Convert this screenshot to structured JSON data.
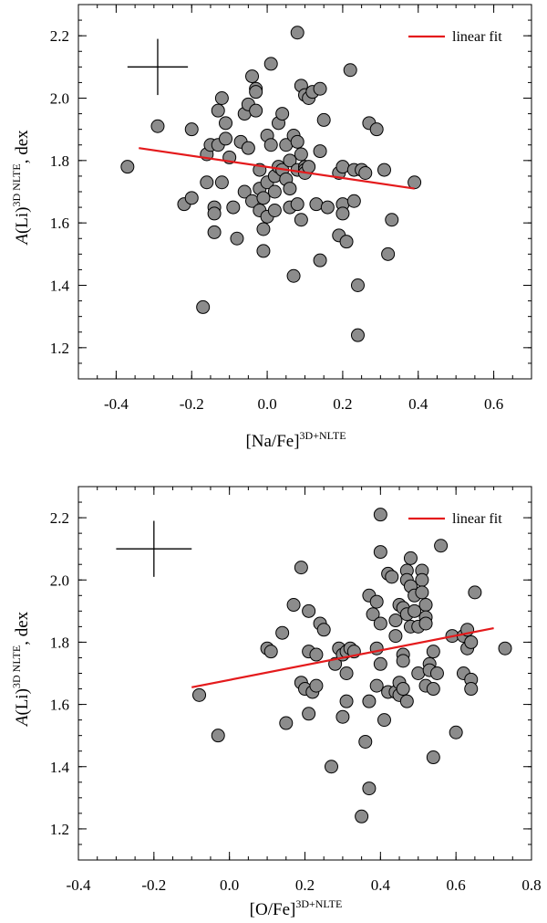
{
  "chart_data": [
    {
      "type": "scatter",
      "xlabel": "[Na/Fe]",
      "xlabel_sup": "3D+NLTE",
      "ylabel_main": "A(Li)",
      "ylabel_sup": "3D NLTE",
      "ylabel_unit": ", dex",
      "xlim": [
        -0.5,
        0.7
      ],
      "ylim": [
        1.1,
        2.3
      ],
      "xticks": [
        "-0.4",
        "-0.2",
        "0.0",
        "0.2",
        "0.4",
        "0.6"
      ],
      "xtick_values": [
        -0.4,
        -0.2,
        0.0,
        0.2,
        0.4,
        0.6
      ],
      "yticks": [
        "1.2",
        "1.4",
        "1.6",
        "1.8",
        "2.0",
        "2.2"
      ],
      "ytick_values": [
        1.2,
        1.4,
        1.6,
        1.8,
        2.0,
        2.2
      ],
      "legend": "linear fit",
      "fit": {
        "x": [
          -0.34,
          0.39
        ],
        "y": [
          1.84,
          1.71
        ]
      },
      "error_bar": {
        "x": -0.29,
        "y": 2.1,
        "dx": 0.08,
        "dy": 0.09
      },
      "points": [
        [
          -0.37,
          1.78
        ],
        [
          -0.29,
          1.91
        ],
        [
          -0.22,
          1.66
        ],
        [
          -0.2,
          1.68
        ],
        [
          -0.2,
          1.9
        ],
        [
          -0.17,
          1.33
        ],
        [
          -0.16,
          1.73
        ],
        [
          -0.16,
          1.82
        ],
        [
          -0.15,
          1.85
        ],
        [
          -0.14,
          1.57
        ],
        [
          -0.14,
          1.65
        ],
        [
          -0.14,
          1.63
        ],
        [
          -0.13,
          1.96
        ],
        [
          -0.13,
          1.85
        ],
        [
          -0.12,
          2.0
        ],
        [
          -0.12,
          1.73
        ],
        [
          -0.11,
          1.87
        ],
        [
          -0.11,
          1.92
        ],
        [
          -0.1,
          1.81
        ],
        [
          -0.09,
          1.65
        ],
        [
          -0.08,
          1.55
        ],
        [
          -0.07,
          1.86
        ],
        [
          -0.06,
          1.7
        ],
        [
          -0.06,
          1.95
        ],
        [
          -0.05,
          1.98
        ],
        [
          -0.05,
          1.84
        ],
        [
          -0.04,
          2.07
        ],
        [
          -0.04,
          1.67
        ],
        [
          -0.03,
          2.03
        ],
        [
          -0.03,
          2.02
        ],
        [
          -0.03,
          1.96
        ],
        [
          -0.02,
          1.77
        ],
        [
          -0.02,
          1.71
        ],
        [
          -0.02,
          1.64
        ],
        [
          -0.01,
          1.68
        ],
        [
          -0.01,
          1.58
        ],
        [
          0.0,
          1.73
        ],
        [
          0.0,
          1.62
        ],
        [
          -0.01,
          1.51
        ],
        [
          0.0,
          1.88
        ],
        [
          0.01,
          1.85
        ],
        [
          0.01,
          2.11
        ],
        [
          0.02,
          1.75
        ],
        [
          0.02,
          1.64
        ],
        [
          0.02,
          1.7
        ],
        [
          0.03,
          1.92
        ],
        [
          0.03,
          1.78
        ],
        [
          0.04,
          1.77
        ],
        [
          0.04,
          1.95
        ],
        [
          0.05,
          1.85
        ],
        [
          0.05,
          1.74
        ],
        [
          0.06,
          1.71
        ],
        [
          0.06,
          1.8
        ],
        [
          0.06,
          1.65
        ],
        [
          0.07,
          1.43
        ],
        [
          0.07,
          1.88
        ],
        [
          0.08,
          2.21
        ],
        [
          0.08,
          1.86
        ],
        [
          0.08,
          1.77
        ],
        [
          0.08,
          1.66
        ],
        [
          0.09,
          2.04
        ],
        [
          0.09,
          1.82
        ],
        [
          0.09,
          1.61
        ],
        [
          0.1,
          2.01
        ],
        [
          0.1,
          1.78
        ],
        [
          0.1,
          1.77
        ],
        [
          0.1,
          1.76
        ],
        [
          0.11,
          2.0
        ],
        [
          0.11,
          1.78
        ],
        [
          0.12,
          2.02
        ],
        [
          0.13,
          1.66
        ],
        [
          0.14,
          1.48
        ],
        [
          0.14,
          1.83
        ],
        [
          0.14,
          2.03
        ],
        [
          0.15,
          1.93
        ],
        [
          0.16,
          1.65
        ],
        [
          0.19,
          1.56
        ],
        [
          0.19,
          1.76
        ],
        [
          0.2,
          1.78
        ],
        [
          0.2,
          1.66
        ],
        [
          0.2,
          1.63
        ],
        [
          0.21,
          1.54
        ],
        [
          0.22,
          2.09
        ],
        [
          0.23,
          1.67
        ],
        [
          0.23,
          1.77
        ],
        [
          0.24,
          1.4
        ],
        [
          0.24,
          1.24
        ],
        [
          0.25,
          1.77
        ],
        [
          0.26,
          1.76
        ],
        [
          0.27,
          1.92
        ],
        [
          0.29,
          1.9
        ],
        [
          0.31,
          1.77
        ],
        [
          0.32,
          1.5
        ],
        [
          0.33,
          1.61
        ],
        [
          0.39,
          1.73
        ]
      ]
    },
    {
      "type": "scatter",
      "xlabel": "[O/Fe]",
      "xlabel_sup": "3D+NLTE",
      "ylabel_main": "A(Li)",
      "ylabel_sup": "3D NLTE",
      "ylabel_unit": ", dex",
      "xlim": [
        -0.4,
        0.8
      ],
      "ylim": [
        1.1,
        2.3
      ],
      "xticks": [
        "-0.4",
        "-0.2",
        "0.0",
        "0.2",
        "0.4",
        "0.6",
        "0.8"
      ],
      "xtick_values": [
        -0.4,
        -0.2,
        0.0,
        0.2,
        0.4,
        0.6,
        0.8
      ],
      "yticks": [
        "1.2",
        "1.4",
        "1.6",
        "1.8",
        "2.0",
        "2.2"
      ],
      "ytick_values": [
        1.2,
        1.4,
        1.6,
        1.8,
        2.0,
        2.2
      ],
      "legend": "linear fit",
      "fit": {
        "x": [
          -0.1,
          0.7
        ],
        "y": [
          1.655,
          1.845
        ]
      },
      "error_bar": {
        "x": -0.2,
        "y": 2.1,
        "dx": 0.1,
        "dy": 0.09
      },
      "points": [
        [
          -0.08,
          1.63
        ],
        [
          -0.03,
          1.5
        ],
        [
          0.1,
          1.78
        ],
        [
          0.11,
          1.77
        ],
        [
          0.14,
          1.83
        ],
        [
          0.15,
          1.54
        ],
        [
          0.17,
          1.92
        ],
        [
          0.19,
          2.04
        ],
        [
          0.19,
          1.67
        ],
        [
          0.2,
          1.65
        ],
        [
          0.21,
          1.57
        ],
        [
          0.21,
          1.77
        ],
        [
          0.21,
          1.9
        ],
        [
          0.22,
          1.64
        ],
        [
          0.23,
          1.66
        ],
        [
          0.23,
          1.76
        ],
        [
          0.24,
          1.86
        ],
        [
          0.25,
          1.84
        ],
        [
          0.27,
          1.4
        ],
        [
          0.28,
          1.73
        ],
        [
          0.29,
          1.78
        ],
        [
          0.3,
          1.76
        ],
        [
          0.3,
          1.56
        ],
        [
          0.31,
          1.77
        ],
        [
          0.31,
          1.7
        ],
        [
          0.31,
          1.61
        ],
        [
          0.32,
          1.78
        ],
        [
          0.33,
          1.77
        ],
        [
          0.35,
          1.24
        ],
        [
          0.36,
          1.48
        ],
        [
          0.37,
          1.33
        ],
        [
          0.37,
          1.61
        ],
        [
          0.37,
          1.95
        ],
        [
          0.38,
          1.89
        ],
        [
          0.39,
          1.93
        ],
        [
          0.39,
          1.66
        ],
        [
          0.39,
          1.78
        ],
        [
          0.4,
          2.21
        ],
        [
          0.4,
          2.09
        ],
        [
          0.4,
          1.86
        ],
        [
          0.4,
          1.73
        ],
        [
          0.41,
          1.55
        ],
        [
          0.42,
          2.02
        ],
        [
          0.42,
          1.64
        ],
        [
          0.43,
          2.01
        ],
        [
          0.44,
          1.64
        ],
        [
          0.44,
          1.82
        ],
        [
          0.44,
          1.87
        ],
        [
          0.45,
          1.67
        ],
        [
          0.45,
          1.63
        ],
        [
          0.45,
          1.92
        ],
        [
          0.46,
          1.91
        ],
        [
          0.46,
          1.76
        ],
        [
          0.46,
          1.74
        ],
        [
          0.46,
          1.65
        ],
        [
          0.47,
          1.61
        ],
        [
          0.47,
          2.03
        ],
        [
          0.47,
          2.0
        ],
        [
          0.47,
          1.89
        ],
        [
          0.48,
          2.07
        ],
        [
          0.48,
          1.98
        ],
        [
          0.48,
          1.85
        ],
        [
          0.49,
          1.9
        ],
        [
          0.49,
          1.95
        ],
        [
          0.5,
          1.7
        ],
        [
          0.5,
          1.85
        ],
        [
          0.51,
          2.03
        ],
        [
          0.51,
          2.0
        ],
        [
          0.51,
          1.96
        ],
        [
          0.52,
          1.92
        ],
        [
          0.52,
          1.88
        ],
        [
          0.52,
          1.86
        ],
        [
          0.52,
          1.66
        ],
        [
          0.53,
          1.73
        ],
        [
          0.53,
          1.71
        ],
        [
          0.54,
          1.77
        ],
        [
          0.54,
          1.65
        ],
        [
          0.54,
          1.43
        ],
        [
          0.55,
          1.7
        ],
        [
          0.56,
          2.11
        ],
        [
          0.59,
          1.82
        ],
        [
          0.6,
          1.51
        ],
        [
          0.62,
          1.7
        ],
        [
          0.62,
          1.82
        ],
        [
          0.63,
          1.84
        ],
        [
          0.63,
          1.78
        ],
        [
          0.64,
          1.8
        ],
        [
          0.64,
          1.68
        ],
        [
          0.64,
          1.65
        ],
        [
          0.65,
          1.96
        ],
        [
          0.73,
          1.78
        ]
      ]
    }
  ]
}
